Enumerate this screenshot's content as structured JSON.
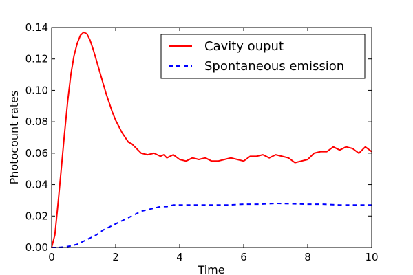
{
  "chart_data": {
    "type": "line",
    "title": "",
    "xlabel": "Time",
    "ylabel": "Photocount rates",
    "xlim": [
      0,
      10
    ],
    "ylim": [
      0,
      0.14
    ],
    "xticks": [
      0,
      2,
      4,
      6,
      8,
      10
    ],
    "xtick_labels": [
      "0",
      "2",
      "4",
      "6",
      "8",
      "10"
    ],
    "yticks": [
      0,
      0.02,
      0.04,
      0.06,
      0.08,
      0.1,
      0.12,
      0.14
    ],
    "ytick_labels": [
      "0.00",
      "0.02",
      "0.04",
      "0.06",
      "0.08",
      "0.10",
      "0.12",
      "0.14"
    ],
    "grid": false,
    "legend_position": "top-right",
    "series": [
      {
        "name": "Cavity ouput",
        "color": "#ff0000",
        "style": "solid",
        "x": [
          0,
          0.1,
          0.2,
          0.3,
          0.4,
          0.5,
          0.6,
          0.7,
          0.8,
          0.9,
          1.0,
          1.1,
          1.2,
          1.3,
          1.4,
          1.5,
          1.6,
          1.7,
          1.8,
          1.9,
          2.0,
          2.2,
          2.4,
          2.5,
          2.6,
          2.8,
          3.0,
          3.2,
          3.3,
          3.4,
          3.5,
          3.6,
          3.8,
          4.0,
          4.2,
          4.4,
          4.6,
          4.8,
          5.0,
          5.2,
          5.4,
          5.6,
          5.8,
          6.0,
          6.2,
          6.4,
          6.6,
          6.8,
          7.0,
          7.2,
          7.4,
          7.6,
          7.8,
          8.0,
          8.2,
          8.4,
          8.6,
          8.8,
          9.0,
          9.2,
          9.4,
          9.6,
          9.8,
          10.0
        ],
        "y": [
          0.0,
          0.008,
          0.028,
          0.05,
          0.072,
          0.093,
          0.11,
          0.122,
          0.13,
          0.135,
          0.137,
          0.136,
          0.132,
          0.126,
          0.119,
          0.112,
          0.105,
          0.098,
          0.092,
          0.086,
          0.081,
          0.073,
          0.067,
          0.066,
          0.064,
          0.06,
          0.059,
          0.06,
          0.059,
          0.058,
          0.059,
          0.057,
          0.059,
          0.056,
          0.055,
          0.057,
          0.056,
          0.057,
          0.055,
          0.055,
          0.056,
          0.057,
          0.056,
          0.055,
          0.058,
          0.058,
          0.059,
          0.057,
          0.059,
          0.058,
          0.057,
          0.054,
          0.055,
          0.056,
          0.06,
          0.061,
          0.061,
          0.064,
          0.062,
          0.064,
          0.063,
          0.06,
          0.064,
          0.061
        ]
      },
      {
        "name": "Spontaneous emission",
        "color": "#0000ff",
        "style": "dashed",
        "x": [
          0,
          0.2,
          0.4,
          0.6,
          0.8,
          1.0,
          1.2,
          1.4,
          1.6,
          1.8,
          2.0,
          2.2,
          2.4,
          2.6,
          2.8,
          3.0,
          3.2,
          3.4,
          3.6,
          3.8,
          4.0,
          4.5,
          5.0,
          5.5,
          6.0,
          6.5,
          7.0,
          7.5,
          8.0,
          8.5,
          9.0,
          9.5,
          10.0
        ],
        "y": [
          0.0,
          0.0,
          0.0003,
          0.001,
          0.002,
          0.004,
          0.006,
          0.008,
          0.011,
          0.013,
          0.015,
          0.017,
          0.019,
          0.021,
          0.023,
          0.024,
          0.025,
          0.026,
          0.026,
          0.027,
          0.027,
          0.027,
          0.027,
          0.027,
          0.0275,
          0.0275,
          0.028,
          0.0278,
          0.0275,
          0.0275,
          0.027,
          0.027,
          0.027
        ]
      }
    ]
  }
}
